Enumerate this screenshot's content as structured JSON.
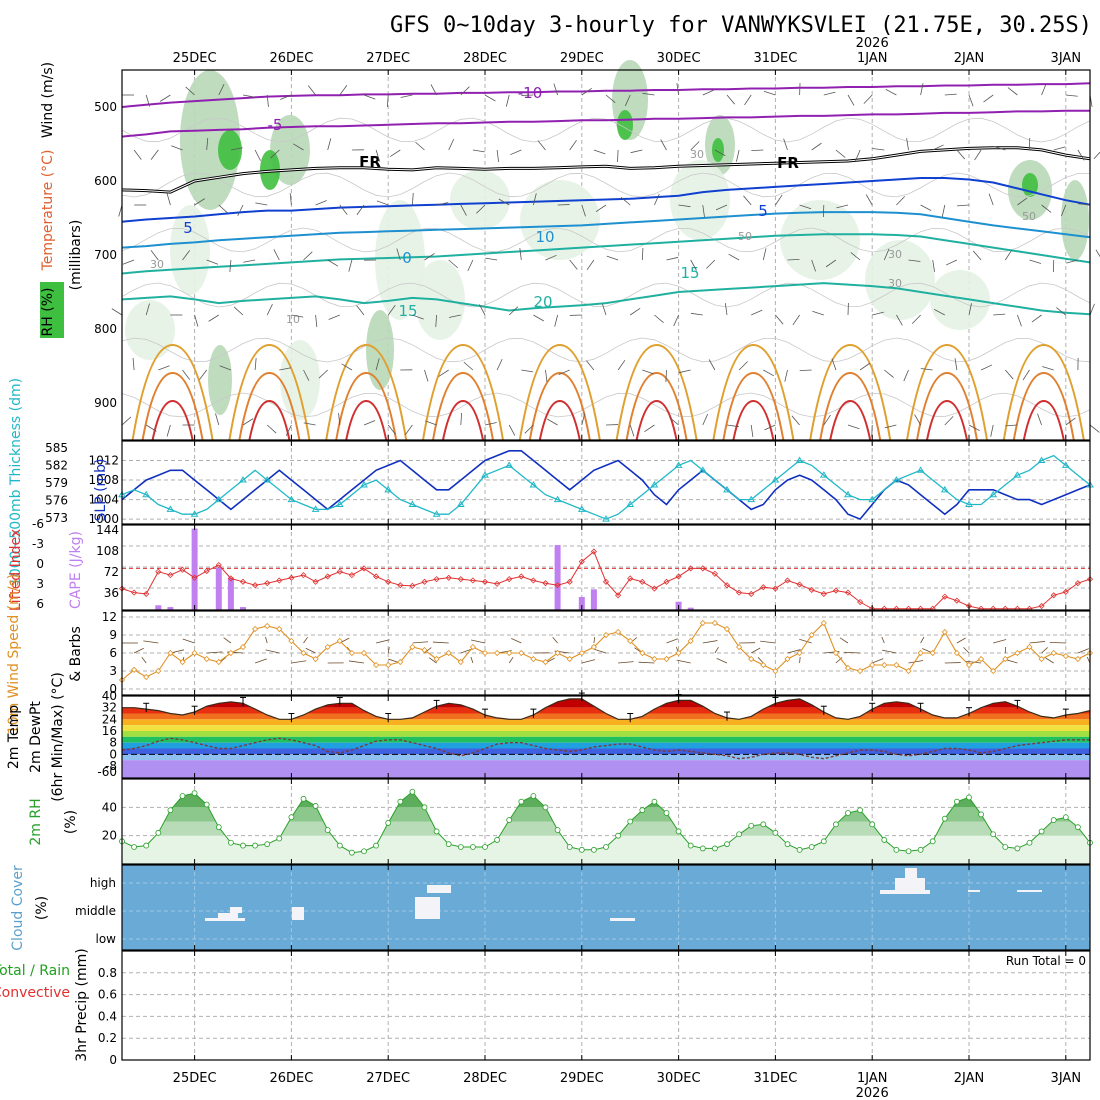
{
  "title": "GFS 0~10day 3-hourly for VANWYKSVLEI (21.75E, 30.25S)",
  "year_label": "2026",
  "dates": [
    "25DEC",
    "26DEC",
    "27DEC",
    "28DEC",
    "29DEC",
    "30DEC",
    "31DEC",
    "1JAN",
    "2JAN",
    "3JAN"
  ],
  "colors": {
    "temp_warm": "#e0a030",
    "temp_hot": "#d03030",
    "temp_mid": "#20b0a0",
    "temp_cool": "#1e90d0",
    "temp_cold": "#1040d0",
    "temp_neg": "#9020b0",
    "rh_light": "#e6f2e6",
    "rh_mid": "#b8d8b8",
    "rh_dark": "#3fbf3f",
    "slp": "#1030c0",
    "thickness": "#20b8c8",
    "li": "#e03030",
    "cape": "#c080f0",
    "wind10": "#e09020",
    "barb": "#6a4a2a",
    "rh2m": "#2aa02a",
    "cloud": "#6aaad6",
    "precip_total": "#20a020",
    "precip_conv": "#e03030"
  },
  "chart_data": [
    {
      "panel": "upper-air",
      "type": "contour",
      "ylabel_parts": [
        "Wind (m/s)",
        "Temperature (°C)",
        "(millibars)",
        "RH (%)"
      ],
      "ylim": [
        950,
        450
      ],
      "yticks": [
        500,
        600,
        700,
        800,
        900
      ],
      "isotherm_labels": [
        "-10",
        "-5",
        "FR",
        "FR",
        "5",
        "5",
        "10",
        "0",
        "15",
        "15",
        "20"
      ],
      "rh_labels": [
        "30",
        "30",
        "50",
        "50",
        "30",
        "30",
        "10"
      ],
      "isotherms": [
        {
          "temp": -10,
          "p": [
            500,
            497,
            494,
            492,
            490,
            488,
            486,
            485,
            484,
            484,
            483,
            483,
            482,
            482,
            481,
            481,
            480,
            480,
            479,
            479,
            478,
            478,
            477,
            477,
            476,
            476,
            475,
            475,
            474,
            474,
            473,
            473,
            472,
            472,
            471,
            471,
            470,
            470,
            469,
            469,
            468
          ]
        },
        {
          "temp": -5,
          "p": [
            540,
            537,
            533,
            532,
            531,
            530,
            528,
            527,
            526,
            526,
            525,
            524,
            523,
            522,
            522,
            521,
            520,
            520,
            519,
            518,
            518,
            517,
            516,
            516,
            515,
            514,
            514,
            513,
            512,
            512,
            511,
            510,
            510,
            509,
            508,
            508,
            507,
            506,
            506,
            505,
            505
          ]
        },
        {
          "temp": 0,
          "p": [
            612,
            613,
            615,
            600,
            595,
            590,
            587,
            585,
            583,
            582,
            582,
            584,
            585,
            582,
            583,
            584,
            583,
            583,
            582,
            581,
            580,
            583,
            582,
            580,
            579,
            578,
            577,
            576,
            575,
            574,
            573,
            570,
            565,
            560,
            558,
            556,
            555,
            555,
            558,
            565,
            570
          ]
        },
        {
          "temp": 5,
          "p": [
            655,
            652,
            650,
            648,
            645,
            642,
            640,
            640,
            638,
            636,
            635,
            634,
            633,
            632,
            631,
            630,
            629,
            628,
            627,
            626,
            625,
            624,
            622,
            620,
            615,
            612,
            610,
            608,
            606,
            604,
            602,
            600,
            598,
            596,
            596,
            598,
            602,
            610,
            618,
            626,
            632
          ]
        },
        {
          "temp": 10,
          "p": [
            690,
            688,
            685,
            683,
            680,
            678,
            676,
            674,
            672,
            670,
            669,
            668,
            667,
            666,
            665,
            664,
            663,
            662,
            661,
            660,
            658,
            656,
            654,
            652,
            650,
            648,
            646,
            644,
            643,
            642,
            642,
            642,
            643,
            645,
            650,
            655,
            660,
            664,
            668,
            672,
            676
          ]
        },
        {
          "temp": 15,
          "p": [
            725,
            722,
            720,
            718,
            716,
            714,
            712,
            710,
            708,
            706,
            705,
            704,
            703,
            702,
            700,
            698,
            696,
            694,
            692,
            690,
            688,
            686,
            684,
            682,
            680,
            678,
            676,
            674,
            673,
            672,
            672,
            672,
            673,
            675,
            680,
            685,
            690,
            695,
            700,
            705,
            710
          ]
        },
        {
          "temp": 20,
          "p": [
            760,
            758,
            756,
            760,
            765,
            762,
            760,
            758,
            756,
            760,
            765,
            762,
            758,
            760,
            765,
            770,
            775,
            772,
            770,
            768,
            765,
            760,
            755,
            750,
            748,
            746,
            744,
            742,
            740,
            738,
            740,
            742,
            745,
            750,
            755,
            760,
            765,
            770,
            775,
            778,
            780
          ]
        }
      ]
    },
    {
      "panel": "slp-thickness",
      "type": "line",
      "ylabels": [
        "1000~500mb Thickness (dm)",
        "SLP (mb)"
      ],
      "thickness_ticks": [
        573,
        576,
        579,
        582,
        585
      ],
      "slp_ticks": [
        1000,
        1004,
        1008,
        1012
      ],
      "ylim_slp": [
        999,
        1016
      ],
      "series": [
        {
          "name": "SLP",
          "values": [
            1004,
            1006,
            1008,
            1009,
            1010,
            1010,
            1008,
            1006,
            1004,
            1002,
            1004,
            1006,
            1008,
            1010,
            1008,
            1006,
            1004,
            1002,
            1004,
            1006,
            1008,
            1010,
            1011,
            1012,
            1010,
            1008,
            1006,
            1006,
            1008,
            1010,
            1012,
            1013,
            1014,
            1014,
            1012,
            1010,
            1008,
            1006,
            1008,
            1010,
            1011,
            1012,
            1010,
            1008,
            1005,
            1003,
            1006,
            1008,
            1010,
            1008,
            1006,
            1004,
            1002,
            1003,
            1006,
            1008,
            1009,
            1008,
            1006,
            1004,
            1001,
            1000,
            1003,
            1006,
            1008,
            1007,
            1005,
            1003,
            1001,
            1003,
            1006,
            1006,
            1006,
            1005,
            1004,
            1004,
            1003,
            1004,
            1005,
            1006,
            1007
          ]
        },
        {
          "name": "Thickness",
          "values": [
            1005,
            1006,
            1005,
            1003,
            1002,
            1001,
            1001,
            1002,
            1004,
            1006,
            1008,
            1010,
            1008,
            1006,
            1004,
            1003,
            1002,
            1002,
            1003,
            1005,
            1007,
            1008,
            1006,
            1004,
            1003,
            1002,
            1001,
            1001,
            1003,
            1006,
            1009,
            1010,
            1011,
            1009,
            1007,
            1005,
            1004,
            1003,
            1002,
            1001,
            1000,
            1001,
            1003,
            1005,
            1007,
            1009,
            1011,
            1012,
            1010,
            1008,
            1006,
            1004,
            1004,
            1006,
            1008,
            1010,
            1012,
            1011,
            1009,
            1007,
            1005,
            1004,
            1004,
            1006,
            1008,
            1009,
            1010,
            1008,
            1006,
            1004,
            1003,
            1003,
            1005,
            1007,
            1009,
            1010,
            1012,
            1013,
            1011,
            1009,
            1007
          ]
        }
      ]
    },
    {
      "panel": "li-cape",
      "type": "bar",
      "ylabels": [
        "Lifted Index",
        "CAPE (J/kg)"
      ],
      "li_ticks": [
        "6",
        "3",
        "0",
        "-3",
        "-6"
      ],
      "cape_ticks": [
        "36",
        "72",
        "108",
        "144"
      ],
      "li_values": [
        3,
        3.6,
        3.8,
        0.5,
        1,
        0.2,
        1.4,
        0.4,
        -0.5,
        1.5,
        2,
        2.5,
        2.2,
        1.8,
        1.4,
        1,
        2,
        1.2,
        0.5,
        1,
        0,
        1.2,
        2,
        2.5,
        2.6,
        2,
        1.6,
        1.4,
        1.6,
        1.8,
        2,
        2.3,
        1.6,
        1.2,
        1.8,
        2.2,
        2.5,
        2,
        -1,
        -2.5,
        2,
        4,
        1.5,
        2,
        3,
        2,
        1.2,
        0,
        0,
        0.8,
        2.5,
        3.6,
        3.8,
        2.8,
        3,
        1.8,
        2.4,
        3.2,
        3.8,
        3.3,
        3.6,
        5,
        6,
        6,
        6,
        6,
        6,
        6,
        4.2,
        4.8,
        5.6,
        6,
        6,
        6,
        6,
        6,
        5.6,
        4,
        3.5,
        2.2,
        1.6
      ],
      "cape_bars": [
        {
          "i": 3,
          "v": 8
        },
        {
          "i": 4,
          "v": 5
        },
        {
          "i": 6,
          "v": 138
        },
        {
          "i": 8,
          "v": 72
        },
        {
          "i": 9,
          "v": 55
        },
        {
          "i": 10,
          "v": 5
        },
        {
          "i": 36,
          "v": 110
        },
        {
          "i": 38,
          "v": 22
        },
        {
          "i": 39,
          "v": 35
        },
        {
          "i": 46,
          "v": 14
        },
        {
          "i": 47,
          "v": 4
        }
      ]
    },
    {
      "panel": "wind10m",
      "type": "line",
      "ylabels": [
        "10m Wind Speed (m/s)",
        "& Barbs"
      ],
      "ylim": [
        0,
        12
      ],
      "yticks": [
        "0",
        "3",
        "6",
        "9",
        "12"
      ],
      "values": [
        1.5,
        3.2,
        2,
        3,
        6,
        4.5,
        6,
        5,
        4.5,
        6,
        7,
        10,
        10.5,
        10,
        8,
        6,
        5,
        7,
        8,
        6,
        6,
        4,
        4,
        4.5,
        7,
        6.5,
        5,
        6,
        4.5,
        7,
        6,
        6,
        6,
        6,
        5,
        4.5,
        6,
        5,
        6,
        7,
        9,
        9.5,
        8,
        6,
        5,
        5,
        6,
        8,
        11,
        11,
        10,
        7,
        5,
        4,
        3,
        5,
        6,
        9,
        11,
        6,
        3.5,
        3,
        4,
        4,
        4,
        3,
        6,
        6,
        9.5,
        6,
        4,
        5,
        3,
        5,
        6,
        7,
        5,
        6,
        5.5,
        5,
        6
      ]
    },
    {
      "panel": "temp2m",
      "type": "area",
      "ylabels": [
        "2m Temp",
        "2m DewPt",
        "(6hr Min/Max) (°C)"
      ],
      "yticks": [
        "-60",
        "-8",
        "0",
        "8",
        "16",
        "24",
        "32",
        "40"
      ],
      "temp_values": [
        32,
        32,
        31,
        30,
        28,
        27,
        29,
        33,
        35,
        36,
        35,
        31,
        27,
        24,
        24,
        27,
        31,
        34,
        35,
        35,
        30,
        26,
        24,
        24,
        25,
        29,
        33,
        35,
        34,
        31,
        27,
        25,
        24,
        24,
        27,
        32,
        36,
        38,
        38,
        33,
        28,
        24,
        24,
        26,
        31,
        35,
        37,
        37,
        33,
        28,
        25,
        24,
        26,
        31,
        35,
        37,
        38,
        34,
        29,
        25,
        24,
        26,
        31,
        35,
        36,
        35,
        31,
        27,
        25,
        25,
        28,
        32,
        35,
        36,
        33,
        29,
        26,
        25,
        27,
        28,
        30
      ],
      "dewpt_values": [
        3,
        4,
        6,
        9,
        11,
        10,
        8,
        6,
        4,
        4,
        6,
        8,
        10,
        11,
        10,
        8,
        6,
        2,
        1,
        3,
        6,
        9,
        10,
        10,
        8,
        6,
        4,
        1,
        -1,
        1,
        4,
        7,
        8,
        8,
        6,
        4,
        3,
        2,
        3,
        5,
        6,
        7,
        7,
        5,
        3,
        2,
        3,
        2,
        1,
        0,
        -1,
        -3,
        -2,
        0,
        1,
        1,
        0,
        -2,
        -3,
        -1,
        1,
        3,
        3,
        2,
        0,
        -1,
        0,
        2,
        4,
        4,
        3,
        1,
        2,
        4,
        6,
        7,
        8,
        9,
        10,
        10,
        10
      ]
    },
    {
      "panel": "rh2m",
      "type": "area",
      "ylabel": "2m RH (%)",
      "yticks": [
        "20",
        "40"
      ],
      "values": [
        16,
        12,
        13,
        22,
        38,
        48,
        50,
        42,
        26,
        15,
        13,
        13,
        14,
        18,
        33,
        46,
        41,
        24,
        13,
        8,
        9,
        13,
        29,
        44,
        51,
        40,
        23,
        14,
        12,
        12,
        12,
        17,
        31,
        44,
        48,
        40,
        24,
        12,
        10,
        10,
        12,
        20,
        30,
        38,
        44,
        36,
        23,
        13,
        11,
        11,
        14,
        21,
        27,
        28,
        22,
        14,
        10,
        12,
        16,
        28,
        36,
        38,
        28,
        17,
        10,
        9,
        10,
        16,
        32,
        44,
        47,
        35,
        21,
        12,
        11,
        15,
        23,
        31,
        33,
        26,
        15
      ]
    },
    {
      "panel": "cloud",
      "type": "bar",
      "ylabel": "Cloud Cover (%)",
      "levels": [
        "high",
        "middle",
        "low"
      ]
    },
    {
      "panel": "precip",
      "type": "bar",
      "ylabels": [
        "Total / Rain",
        "Convective",
        "3hr Precip (mm)"
      ],
      "yticks": [
        "0",
        "0.2",
        "0.4",
        "0.6",
        "0.8"
      ],
      "ylim": [
        0,
        1
      ],
      "run_total_label": "Run Total = 0",
      "values": []
    }
  ]
}
